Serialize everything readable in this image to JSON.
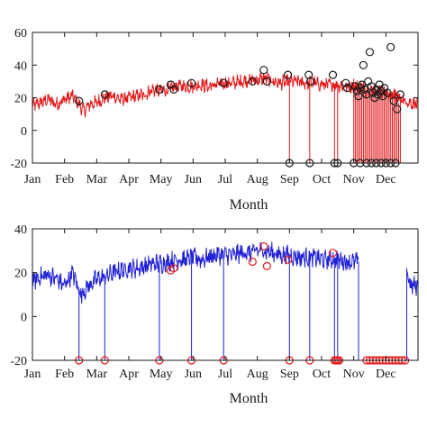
{
  "chart_data": [
    {
      "type": "line",
      "panel": "top",
      "title": "",
      "xlabel": "Month",
      "ylabel": "",
      "ylim": [
        -20,
        60
      ],
      "yticks": [
        -20,
        0,
        20,
        40,
        60
      ],
      "xlim": [
        0,
        12
      ],
      "xticks": [
        {
          "x": 0,
          "label": "Jan"
        },
        {
          "x": 1,
          "label": "Feb"
        },
        {
          "x": 2,
          "label": "Mar"
        },
        {
          "x": 3,
          "label": "Apr"
        },
        {
          "x": 4,
          "label": "May"
        },
        {
          "x": 5,
          "label": "Jun"
        },
        {
          "x": 6,
          "label": "Jul"
        },
        {
          "x": 7,
          "label": "Aug"
        },
        {
          "x": 8,
          "label": "Sep"
        },
        {
          "x": 9,
          "label": "Oct"
        },
        {
          "x": 10,
          "label": "Nov"
        },
        {
          "x": 11,
          "label": "Dec"
        }
      ],
      "grid": false,
      "line_color": "#e31a1c",
      "marker_color": "#1a1a1a",
      "series": [
        {
          "name": "",
          "x": [
            0,
            0.25,
            0.5,
            0.75,
            1.0,
            1.25,
            1.4,
            1.6,
            1.8,
            2.0,
            2.25,
            2.5,
            2.75,
            3.0,
            3.25,
            3.5,
            3.75,
            4.0,
            4.25,
            4.5,
            4.75,
            5.0,
            5.25,
            5.5,
            5.75,
            6.0,
            6.25,
            6.5,
            6.75,
            7.0,
            7.25,
            7.5,
            7.75,
            8.0,
            8.25,
            8.5,
            8.75,
            9.0,
            9.25,
            9.5,
            9.75,
            10.0,
            10.25,
            10.5,
            10.75,
            11.0,
            11.25,
            11.5,
            11.75,
            12.0
          ],
          "y": [
            15,
            17,
            19,
            16,
            19,
            21,
            17,
            12,
            16,
            17,
            20,
            21,
            19,
            20,
            21,
            22,
            25,
            24,
            25,
            27,
            27,
            27,
            28,
            27,
            28,
            29,
            29,
            30,
            31,
            31,
            32,
            30,
            29,
            30,
            30,
            29,
            29,
            28,
            28,
            28,
            27,
            27,
            26,
            25,
            24,
            23,
            21,
            19,
            17,
            16
          ]
        }
      ],
      "outliers_x": [
        8.0,
        8.63,
        9.4,
        9.5,
        10.3,
        10.55,
        10.75,
        10.9,
        11.05,
        11.2,
        11.35,
        11.45
      ],
      "outliers_y": -20,
      "markers": [
        {
          "x": 1.45,
          "y": 18
        },
        {
          "x": 2.25,
          "y": 22
        },
        {
          "x": 3.95,
          "y": 25
        },
        {
          "x": 4.3,
          "y": 28
        },
        {
          "x": 4.4,
          "y": 25
        },
        {
          "x": 4.95,
          "y": 29
        },
        {
          "x": 5.95,
          "y": 29
        },
        {
          "x": 6.85,
          "y": 30
        },
        {
          "x": 7.2,
          "y": 37
        },
        {
          "x": 7.3,
          "y": 30
        },
        {
          "x": 7.95,
          "y": 34
        },
        {
          "x": 8.6,
          "y": 34
        },
        {
          "x": 8.65,
          "y": 30
        },
        {
          "x": 9.35,
          "y": 34
        },
        {
          "x": 9.75,
          "y": 29
        },
        {
          "x": 9.8,
          "y": 26
        },
        {
          "x": 10.0,
          "y": -20
        },
        {
          "x": 10.05,
          "y": 27
        },
        {
          "x": 10.1,
          "y": 24
        },
        {
          "x": 10.15,
          "y": 21
        },
        {
          "x": 10.2,
          "y": 26
        },
        {
          "x": 10.25,
          "y": 28
        },
        {
          "x": 10.3,
          "y": 40
        },
        {
          "x": 10.35,
          "y": 25
        },
        {
          "x": 10.4,
          "y": 22
        },
        {
          "x": 10.45,
          "y": 30
        },
        {
          "x": 10.5,
          "y": 48
        },
        {
          "x": 10.55,
          "y": 27
        },
        {
          "x": 10.6,
          "y": 23
        },
        {
          "x": 10.65,
          "y": 20
        },
        {
          "x": 10.7,
          "y": 25
        },
        {
          "x": 10.75,
          "y": 22
        },
        {
          "x": 10.8,
          "y": 28
        },
        {
          "x": 10.85,
          "y": 24
        },
        {
          "x": 10.9,
          "y": 21
        },
        {
          "x": 10.95,
          "y": 26
        },
        {
          "x": 11.05,
          "y": 23
        },
        {
          "x": 11.15,
          "y": 51
        },
        {
          "x": 11.25,
          "y": 18
        },
        {
          "x": 11.35,
          "y": 13
        },
        {
          "x": 11.45,
          "y": 22
        },
        {
          "x": 8.0,
          "y": -20
        },
        {
          "x": 8.63,
          "y": -20
        },
        {
          "x": 9.4,
          "y": -20
        },
        {
          "x": 9.5,
          "y": -20
        },
        {
          "x": 10.2,
          "y": -20
        },
        {
          "x": 10.4,
          "y": -20
        },
        {
          "x": 10.55,
          "y": -20
        },
        {
          "x": 10.7,
          "y": -20
        },
        {
          "x": 10.85,
          "y": -20
        },
        {
          "x": 11.0,
          "y": -20
        },
        {
          "x": 11.15,
          "y": -20
        },
        {
          "x": 11.3,
          "y": -20
        }
      ]
    },
    {
      "type": "line",
      "panel": "bottom",
      "title": "",
      "xlabel": "Month",
      "ylabel": "",
      "ylim": [
        -20,
        40
      ],
      "yticks": [
        -20,
        0,
        20,
        40
      ],
      "xlim": [
        0,
        12
      ],
      "xticks": [
        {
          "x": 0,
          "label": "Jan"
        },
        {
          "x": 1,
          "label": "Feb"
        },
        {
          "x": 2,
          "label": "Mar"
        },
        {
          "x": 3,
          "label": "Apr"
        },
        {
          "x": 4,
          "label": "May"
        },
        {
          "x": 5,
          "label": "Jun"
        },
        {
          "x": 6,
          "label": "Jul"
        },
        {
          "x": 7,
          "label": "Aug"
        },
        {
          "x": 8,
          "label": "Sep"
        },
        {
          "x": 9,
          "label": "Oct"
        },
        {
          "x": 10,
          "label": "Nov"
        },
        {
          "x": 11,
          "label": "Dec"
        }
      ],
      "grid": false,
      "line_color": "#1f1fd6",
      "marker_color": "#e31a1c",
      "gap_x": [
        10.15,
        11.65
      ],
      "series": [
        {
          "name": "",
          "x": [
            0,
            0.25,
            0.5,
            0.75,
            1.0,
            1.25,
            1.5,
            1.75,
            2.0,
            2.25,
            2.5,
            2.75,
            3.0,
            3.25,
            3.5,
            3.75,
            4.0,
            4.25,
            4.5,
            4.75,
            5.0,
            5.25,
            5.5,
            5.75,
            6.0,
            6.25,
            6.5,
            6.75,
            7.0,
            7.25,
            7.5,
            7.75,
            8.0,
            8.25,
            8.5,
            8.75,
            9.0,
            9.25,
            9.5,
            9.75,
            10.0,
            10.15,
            11.65,
            11.75,
            12.0
          ],
          "y": [
            16,
            18,
            19,
            17,
            14,
            20,
            10,
            14,
            17,
            18,
            20,
            21,
            22,
            22,
            23,
            24,
            24,
            25,
            26,
            26,
            27,
            26,
            27,
            28,
            28,
            28,
            29,
            29,
            30,
            30,
            29,
            28,
            28,
            27,
            27,
            27,
            26,
            26,
            26,
            25,
            25,
            25,
            23,
            14,
            14
          ]
        }
      ],
      "outliers_x": [
        1.45,
        2.25,
        3.95,
        4.95,
        5.95,
        8.0,
        8.63,
        9.4,
        9.5
      ],
      "outliers_y": -20,
      "markers": [
        {
          "x": 1.45,
          "y": -20
        },
        {
          "x": 2.25,
          "y": -20
        },
        {
          "x": 3.95,
          "y": -20
        },
        {
          "x": 4.95,
          "y": -20
        },
        {
          "x": 5.95,
          "y": -20
        },
        {
          "x": 8.0,
          "y": -20
        },
        {
          "x": 8.63,
          "y": -20
        },
        {
          "x": 9.4,
          "y": -20
        },
        {
          "x": 9.45,
          "y": -20
        },
        {
          "x": 9.5,
          "y": -20
        },
        {
          "x": 9.55,
          "y": -20
        },
        {
          "x": 10.4,
          "y": -20
        },
        {
          "x": 10.5,
          "y": -20
        },
        {
          "x": 10.6,
          "y": -20
        },
        {
          "x": 10.7,
          "y": -20
        },
        {
          "x": 10.8,
          "y": -20
        },
        {
          "x": 10.9,
          "y": -20
        },
        {
          "x": 11.0,
          "y": -20
        },
        {
          "x": 11.1,
          "y": -20
        },
        {
          "x": 11.2,
          "y": -20
        },
        {
          "x": 11.3,
          "y": -20
        },
        {
          "x": 11.4,
          "y": -20
        },
        {
          "x": 11.5,
          "y": -20
        },
        {
          "x": 11.6,
          "y": -20
        },
        {
          "x": 4.3,
          "y": 21
        },
        {
          "x": 4.4,
          "y": 22
        },
        {
          "x": 6.85,
          "y": 25
        },
        {
          "x": 7.2,
          "y": 32
        },
        {
          "x": 7.3,
          "y": 23
        },
        {
          "x": 7.95,
          "y": 26
        },
        {
          "x": 9.35,
          "y": 29
        }
      ]
    }
  ]
}
